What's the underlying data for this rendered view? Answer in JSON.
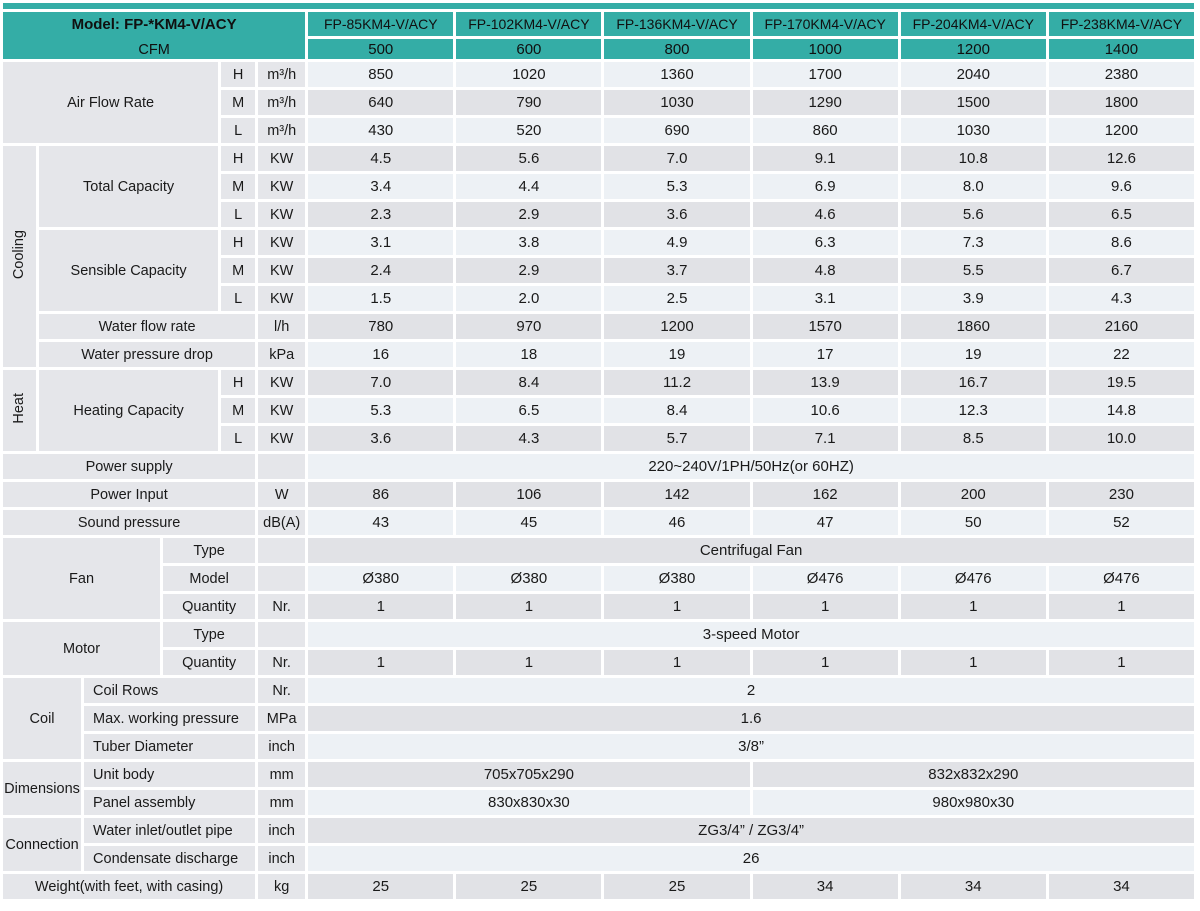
{
  "colors": {
    "accent_teal": "#34ada6",
    "label_bg": "#e5e6ea",
    "row_light": "#edf1f5",
    "row_gray": "#e1e2e6",
    "text": "#1a1a1a"
  },
  "table": {
    "rows": [
      {
        "bg": "",
        "cells": [
          {
            "k": "strip",
            "cs": 12,
            "t": ""
          }
        ]
      },
      {
        "bg": "",
        "cells": [
          {
            "k": "model",
            "cs": 6,
            "rs": 2,
            "t": "Model: FP-*KM4-V/ACY",
            "t2": "CFM"
          },
          {
            "k": "th",
            "t": "FP-85KM4-V/ACY"
          },
          {
            "k": "th",
            "t": "FP-102KM4-V/ACY"
          },
          {
            "k": "th",
            "t": "FP-136KM4-V/ACY"
          },
          {
            "k": "th",
            "t": "FP-170KM4-V/ACY"
          },
          {
            "k": "th",
            "t": "FP-204KM4-V/ACY"
          },
          {
            "k": "th",
            "t": "FP-238KM4-V/ACY"
          }
        ]
      },
      {
        "bg": "",
        "cells": [
          {
            "k": "thn",
            "t": "500"
          },
          {
            "k": "thn",
            "t": "600"
          },
          {
            "k": "thn",
            "t": "800"
          },
          {
            "k": "thn",
            "t": "1000"
          },
          {
            "k": "thn",
            "t": "1200"
          },
          {
            "k": "thn",
            "t": "1400"
          }
        ]
      },
      {
        "bg": "light",
        "cells": [
          {
            "k": "lbl",
            "cs": 4,
            "rs": 3,
            "t": "Air Flow Rate"
          },
          {
            "k": "lbl",
            "t": "H"
          },
          {
            "k": "unit",
            "t": "m³/h"
          },
          {
            "k": "val",
            "t": "850"
          },
          {
            "k": "val",
            "t": "1020"
          },
          {
            "k": "val",
            "t": "1360"
          },
          {
            "k": "val",
            "t": "1700"
          },
          {
            "k": "val",
            "t": "2040"
          },
          {
            "k": "val",
            "t": "2380"
          }
        ]
      },
      {
        "bg": "gray",
        "cells": [
          {
            "k": "lbl",
            "t": "M"
          },
          {
            "k": "unit",
            "t": "m³/h"
          },
          {
            "k": "val",
            "t": "640"
          },
          {
            "k": "val",
            "t": "790"
          },
          {
            "k": "val",
            "t": "1030"
          },
          {
            "k": "val",
            "t": "1290"
          },
          {
            "k": "val",
            "t": "1500"
          },
          {
            "k": "val",
            "t": "1800"
          }
        ]
      },
      {
        "bg": "light",
        "cells": [
          {
            "k": "lbl",
            "t": "L"
          },
          {
            "k": "unit",
            "t": "m³/h"
          },
          {
            "k": "val",
            "t": "430"
          },
          {
            "k": "val",
            "t": "520"
          },
          {
            "k": "val",
            "t": "690"
          },
          {
            "k": "val",
            "t": "860"
          },
          {
            "k": "val",
            "t": "1030"
          },
          {
            "k": "val",
            "t": "1200"
          }
        ]
      },
      {
        "bg": "gray",
        "cells": [
          {
            "k": "catv",
            "rs": 8,
            "t": "Cooling"
          },
          {
            "k": "lbl",
            "cs": 3,
            "rs": 3,
            "t": "Total Capacity"
          },
          {
            "k": "lbl",
            "t": "H"
          },
          {
            "k": "unit",
            "t": "KW"
          },
          {
            "k": "val",
            "t": "4.5"
          },
          {
            "k": "val",
            "t": "5.6"
          },
          {
            "k": "val",
            "t": "7.0"
          },
          {
            "k": "val",
            "t": "9.1"
          },
          {
            "k": "val",
            "t": "10.8"
          },
          {
            "k": "val",
            "t": "12.6"
          }
        ]
      },
      {
        "bg": "light",
        "cells": [
          {
            "k": "lbl",
            "t": "M"
          },
          {
            "k": "unit",
            "t": "KW"
          },
          {
            "k": "val",
            "t": "3.4"
          },
          {
            "k": "val",
            "t": "4.4"
          },
          {
            "k": "val",
            "t": "5.3"
          },
          {
            "k": "val",
            "t": "6.9"
          },
          {
            "k": "val",
            "t": "8.0"
          },
          {
            "k": "val",
            "t": "9.6"
          }
        ]
      },
      {
        "bg": "gray",
        "cells": [
          {
            "k": "lbl",
            "t": "L"
          },
          {
            "k": "unit",
            "t": "KW"
          },
          {
            "k": "val",
            "t": "2.3"
          },
          {
            "k": "val",
            "t": "2.9"
          },
          {
            "k": "val",
            "t": "3.6"
          },
          {
            "k": "val",
            "t": "4.6"
          },
          {
            "k": "val",
            "t": "5.6"
          },
          {
            "k": "val",
            "t": "6.5"
          }
        ]
      },
      {
        "bg": "light",
        "cells": [
          {
            "k": "lbl",
            "cs": 3,
            "rs": 3,
            "t": "Sensible Capacity"
          },
          {
            "k": "lbl",
            "t": "H"
          },
          {
            "k": "unit",
            "t": "KW"
          },
          {
            "k": "val",
            "t": "3.1"
          },
          {
            "k": "val",
            "t": "3.8"
          },
          {
            "k": "val",
            "t": "4.9"
          },
          {
            "k": "val",
            "t": "6.3"
          },
          {
            "k": "val",
            "t": "7.3"
          },
          {
            "k": "val",
            "t": "8.6"
          }
        ]
      },
      {
        "bg": "gray",
        "cells": [
          {
            "k": "lbl",
            "t": "M"
          },
          {
            "k": "unit",
            "t": "KW"
          },
          {
            "k": "val",
            "t": "2.4"
          },
          {
            "k": "val",
            "t": "2.9"
          },
          {
            "k": "val",
            "t": "3.7"
          },
          {
            "k": "val",
            "t": "4.8"
          },
          {
            "k": "val",
            "t": "5.5"
          },
          {
            "k": "val",
            "t": "6.7"
          }
        ]
      },
      {
        "bg": "light",
        "cells": [
          {
            "k": "lbl",
            "t": "L"
          },
          {
            "k": "unit",
            "t": "KW"
          },
          {
            "k": "val",
            "t": "1.5"
          },
          {
            "k": "val",
            "t": "2.0"
          },
          {
            "k": "val",
            "t": "2.5"
          },
          {
            "k": "val",
            "t": "3.1"
          },
          {
            "k": "val",
            "t": "3.9"
          },
          {
            "k": "val",
            "t": "4.3"
          }
        ]
      },
      {
        "bg": "gray",
        "cells": [
          {
            "k": "lbl",
            "cs": 4,
            "t": "Water flow rate"
          },
          {
            "k": "unit",
            "t": "l/h"
          },
          {
            "k": "val",
            "t": "780"
          },
          {
            "k": "val",
            "t": "970"
          },
          {
            "k": "val",
            "t": "1200"
          },
          {
            "k": "val",
            "t": "1570"
          },
          {
            "k": "val",
            "t": "1860"
          },
          {
            "k": "val",
            "t": "2160"
          }
        ]
      },
      {
        "bg": "light",
        "cells": [
          {
            "k": "lbl",
            "cs": 4,
            "t": "Water pressure drop"
          },
          {
            "k": "unit",
            "t": "kPa"
          },
          {
            "k": "val",
            "t": "16"
          },
          {
            "k": "val",
            "t": "18"
          },
          {
            "k": "val",
            "t": "19"
          },
          {
            "k": "val",
            "t": "17"
          },
          {
            "k": "val",
            "t": "19"
          },
          {
            "k": "val",
            "t": "22"
          }
        ]
      },
      {
        "bg": "gray",
        "cells": [
          {
            "k": "catv",
            "rs": 3,
            "t": "Heat"
          },
          {
            "k": "lbl",
            "cs": 3,
            "rs": 3,
            "t": "Heating Capacity"
          },
          {
            "k": "lbl",
            "t": "H"
          },
          {
            "k": "unit",
            "t": "KW"
          },
          {
            "k": "val",
            "t": "7.0"
          },
          {
            "k": "val",
            "t": "8.4"
          },
          {
            "k": "val",
            "t": "11.2"
          },
          {
            "k": "val",
            "t": "13.9"
          },
          {
            "k": "val",
            "t": "16.7"
          },
          {
            "k": "val",
            "t": "19.5"
          }
        ]
      },
      {
        "bg": "light",
        "cells": [
          {
            "k": "lbl",
            "t": "M"
          },
          {
            "k": "unit",
            "t": "KW"
          },
          {
            "k": "val",
            "t": "5.3"
          },
          {
            "k": "val",
            "t": "6.5"
          },
          {
            "k": "val",
            "t": "8.4"
          },
          {
            "k": "val",
            "t": "10.6"
          },
          {
            "k": "val",
            "t": "12.3"
          },
          {
            "k": "val",
            "t": "14.8"
          }
        ]
      },
      {
        "bg": "gray",
        "cells": [
          {
            "k": "lbl",
            "t": "L"
          },
          {
            "k": "unit",
            "t": "KW"
          },
          {
            "k": "val",
            "t": "3.6"
          },
          {
            "k": "val",
            "t": "4.3"
          },
          {
            "k": "val",
            "t": "5.7"
          },
          {
            "k": "val",
            "t": "7.1"
          },
          {
            "k": "val",
            "t": "8.5"
          },
          {
            "k": "val",
            "t": "10.0"
          }
        ]
      },
      {
        "bg": "light",
        "cells": [
          {
            "k": "lbl",
            "cs": 5,
            "t": "Power supply"
          },
          {
            "k": "unit",
            "t": ""
          },
          {
            "k": "vspan",
            "cs": 6,
            "t": "220~240V/1PH/50Hz(or 60HZ)"
          }
        ]
      },
      {
        "bg": "gray",
        "cells": [
          {
            "k": "lbl",
            "cs": 5,
            "t": "Power Input"
          },
          {
            "k": "unit",
            "t": "W"
          },
          {
            "k": "val",
            "t": "86"
          },
          {
            "k": "val",
            "t": "106"
          },
          {
            "k": "val",
            "t": "142"
          },
          {
            "k": "val",
            "t": "162"
          },
          {
            "k": "val",
            "t": "200"
          },
          {
            "k": "val",
            "t": "230"
          }
        ]
      },
      {
        "bg": "light",
        "cells": [
          {
            "k": "lbl",
            "cs": 5,
            "t": "Sound pressure"
          },
          {
            "k": "unit",
            "t": "dB(A)"
          },
          {
            "k": "val",
            "t": "43"
          },
          {
            "k": "val",
            "t": "45"
          },
          {
            "k": "val",
            "t": "46"
          },
          {
            "k": "val",
            "t": "47"
          },
          {
            "k": "val",
            "t": "50"
          },
          {
            "k": "val",
            "t": "52"
          }
        ]
      },
      {
        "bg": "gray",
        "cells": [
          {
            "k": "cat",
            "rs": 3,
            "cs": 3,
            "t": "Fan"
          },
          {
            "k": "lbl",
            "cs": 2,
            "t": "Type"
          },
          {
            "k": "unit",
            "t": ""
          },
          {
            "k": "vspan",
            "cs": 6,
            "t": "Centrifugal Fan"
          }
        ]
      },
      {
        "bg": "light",
        "cells": [
          {
            "k": "lbl",
            "cs": 2,
            "t": "Model"
          },
          {
            "k": "unit",
            "t": ""
          },
          {
            "k": "val",
            "t": "Ø380"
          },
          {
            "k": "val",
            "t": "Ø380"
          },
          {
            "k": "val",
            "t": "Ø380"
          },
          {
            "k": "val",
            "t": "Ø476"
          },
          {
            "k": "val",
            "t": "Ø476"
          },
          {
            "k": "val",
            "t": "Ø476"
          }
        ]
      },
      {
        "bg": "gray",
        "cells": [
          {
            "k": "lbl",
            "cs": 2,
            "t": "Quantity"
          },
          {
            "k": "unit",
            "t": "Nr."
          },
          {
            "k": "val",
            "t": "1"
          },
          {
            "k": "val",
            "t": "1"
          },
          {
            "k": "val",
            "t": "1"
          },
          {
            "k": "val",
            "t": "1"
          },
          {
            "k": "val",
            "t": "1"
          },
          {
            "k": "val",
            "t": "1"
          }
        ]
      },
      {
        "bg": "light",
        "cells": [
          {
            "k": "cat",
            "rs": 2,
            "cs": 3,
            "t": "Motor"
          },
          {
            "k": "lbl",
            "cs": 2,
            "t": "Type"
          },
          {
            "k": "unit",
            "t": ""
          },
          {
            "k": "vspan",
            "cs": 6,
            "t": "3-speed Motor"
          }
        ]
      },
      {
        "bg": "gray",
        "cells": [
          {
            "k": "lbl",
            "cs": 2,
            "t": "Quantity"
          },
          {
            "k": "unit",
            "t": "Nr."
          },
          {
            "k": "val",
            "t": "1"
          },
          {
            "k": "val",
            "t": "1"
          },
          {
            "k": "val",
            "t": "1"
          },
          {
            "k": "val",
            "t": "1"
          },
          {
            "k": "val",
            "t": "1"
          },
          {
            "k": "val",
            "t": "1"
          }
        ]
      },
      {
        "bg": "light",
        "cells": [
          {
            "k": "cat",
            "rs": 3,
            "cs": 2,
            "t": "Coil"
          },
          {
            "k": "lbll",
            "cs": 3,
            "t": "Coil Rows"
          },
          {
            "k": "unit",
            "t": "Nr."
          },
          {
            "k": "vspan",
            "cs": 6,
            "t": "2"
          }
        ]
      },
      {
        "bg": "gray",
        "cells": [
          {
            "k": "lbll",
            "cs": 3,
            "t": "Max. working pressure"
          },
          {
            "k": "unit",
            "t": "MPa"
          },
          {
            "k": "vspan",
            "cs": 6,
            "t": "1.6"
          }
        ]
      },
      {
        "bg": "light",
        "cells": [
          {
            "k": "lbll",
            "cs": 3,
            "t": "Tuber Diameter"
          },
          {
            "k": "unit",
            "t": "inch"
          },
          {
            "k": "vspan",
            "cs": 6,
            "t": "3/8”"
          }
        ]
      },
      {
        "bg": "gray",
        "cells": [
          {
            "k": "cat",
            "rs": 2,
            "cs": 2,
            "t": "Dimensions"
          },
          {
            "k": "lbll",
            "cs": 3,
            "t": "Unit body"
          },
          {
            "k": "unit",
            "t": "mm"
          },
          {
            "k": "vspan",
            "cs": 3,
            "t": "705x705x290"
          },
          {
            "k": "vspan",
            "cs": 3,
            "t": "832x832x290"
          }
        ]
      },
      {
        "bg": "light",
        "cells": [
          {
            "k": "lbll",
            "cs": 3,
            "t": "Panel assembly"
          },
          {
            "k": "unit",
            "t": "mm"
          },
          {
            "k": "vspan",
            "cs": 3,
            "t": "830x830x30"
          },
          {
            "k": "vspan",
            "cs": 3,
            "t": "980x980x30"
          }
        ]
      },
      {
        "bg": "gray",
        "cells": [
          {
            "k": "cat",
            "rs": 2,
            "cs": 2,
            "t": "Connection"
          },
          {
            "k": "lbll",
            "cs": 3,
            "t": "Water inlet/outlet pipe"
          },
          {
            "k": "unit",
            "t": "inch"
          },
          {
            "k": "vspan",
            "cs": 6,
            "t": "ZG3/4” / ZG3/4”"
          }
        ]
      },
      {
        "bg": "light",
        "cells": [
          {
            "k": "lbll",
            "cs": 3,
            "t": "Condensate discharge"
          },
          {
            "k": "unit",
            "t": "inch"
          },
          {
            "k": "vspan",
            "cs": 6,
            "t": "26"
          }
        ]
      },
      {
        "bg": "gray",
        "cells": [
          {
            "k": "lbl",
            "cs": 5,
            "t": "Weight(with feet, with casing)"
          },
          {
            "k": "unit",
            "t": "kg"
          },
          {
            "k": "val",
            "t": "25"
          },
          {
            "k": "val",
            "t": "25"
          },
          {
            "k": "val",
            "t": "25"
          },
          {
            "k": "val",
            "t": "34"
          },
          {
            "k": "val",
            "t": "34"
          },
          {
            "k": "val",
            "t": "34"
          }
        ]
      }
    ]
  }
}
